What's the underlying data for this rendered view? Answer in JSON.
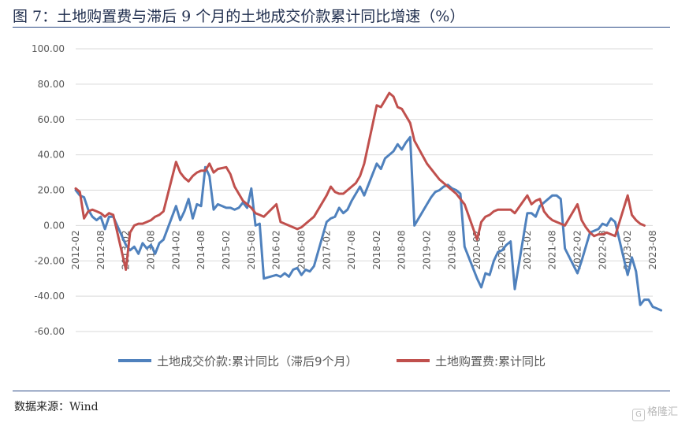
{
  "figure": {
    "title": "图 7：土地购置费与滞后 9 个月的土地成交价款累计同比增速（%）",
    "source": "数据来源：Wind",
    "watermark": "格隆汇"
  },
  "chart_data": {
    "type": "line",
    "title": "",
    "xlabel": "",
    "ylabel": "",
    "ylim": [
      -60,
      100
    ],
    "yticks": [
      "100.00",
      "80.00",
      "60.00",
      "40.00",
      "20.00",
      "0.00",
      "-20.00",
      "-40.00",
      "-60.00"
    ],
    "xticks": [
      "2012-02",
      "2012-08",
      "2013-02",
      "2013-08",
      "2014-02",
      "2014-08",
      "2015-02",
      "2015-08",
      "2016-02",
      "2016-08",
      "2017-02",
      "2017-08",
      "2018-02",
      "2018-08",
      "2019-02",
      "2019-08",
      "2020-02",
      "2020-08",
      "2021-02",
      "2021-08",
      "2022-02",
      "2022-08",
      "2023-02",
      "2023-08"
    ],
    "grid": "horizontal",
    "legend_position": "bottom",
    "colors": {
      "blue": "#4f81bd",
      "red": "#c0504d",
      "grid": "#d9d9d9",
      "axis": "#bfbfbf"
    },
    "series": [
      {
        "name": "土地成交价款:累计同比（滞后9个月）",
        "color": "#4f81bd",
        "points": [
          [
            "2012-02",
            20
          ],
          [
            "2012-03",
            17
          ],
          [
            "2012-04",
            16
          ],
          [
            "2012-05",
            9
          ],
          [
            "2012-06",
            5
          ],
          [
            "2012-07",
            3
          ],
          [
            "2012-08",
            5
          ],
          [
            "2012-09",
            -2
          ],
          [
            "2012-10",
            5
          ],
          [
            "2012-11",
            5
          ],
          [
            "2013-02",
            -11
          ],
          [
            "2013-03",
            -14
          ],
          [
            "2013-04",
            -12
          ],
          [
            "2013-05",
            -16
          ],
          [
            "2013-06",
            -10
          ],
          [
            "2013-07",
            -13
          ],
          [
            "2013-08",
            -11
          ],
          [
            "2013-09",
            -16
          ],
          [
            "2013-10",
            -10
          ],
          [
            "2013-11",
            -8
          ],
          [
            "2014-02",
            11
          ],
          [
            "2014-03",
            3
          ],
          [
            "2014-04",
            8
          ],
          [
            "2014-05",
            15
          ],
          [
            "2014-06",
            4
          ],
          [
            "2014-07",
            12
          ],
          [
            "2014-08",
            11
          ],
          [
            "2014-09",
            33
          ],
          [
            "2014-10",
            28
          ],
          [
            "2014-11",
            9
          ],
          [
            "2014-12",
            12
          ],
          [
            "2015-02",
            10
          ],
          [
            "2015-03",
            10
          ],
          [
            "2015-04",
            9
          ],
          [
            "2015-05",
            10
          ],
          [
            "2015-06",
            13
          ],
          [
            "2015-07",
            10
          ],
          [
            "2015-08",
            21
          ],
          [
            "2015-09",
            0
          ],
          [
            "2015-10",
            1
          ],
          [
            "2015-11",
            -30
          ],
          [
            "2016-02",
            -28
          ],
          [
            "2016-03",
            -29
          ],
          [
            "2016-04",
            -27
          ],
          [
            "2016-05",
            -29
          ],
          [
            "2016-06",
            -25
          ],
          [
            "2016-07",
            -24
          ],
          [
            "2016-08",
            -28
          ],
          [
            "2016-09",
            -25
          ],
          [
            "2016-10",
            -26
          ],
          [
            "2016-11",
            -23
          ],
          [
            "2017-02",
            2
          ],
          [
            "2017-03",
            4
          ],
          [
            "2017-04",
            5
          ],
          [
            "2017-05",
            10
          ],
          [
            "2017-06",
            7
          ],
          [
            "2017-07",
            9
          ],
          [
            "2017-08",
            14
          ],
          [
            "2017-09",
            18
          ],
          [
            "2017-10",
            22
          ],
          [
            "2017-11",
            17
          ],
          [
            "2018-02",
            35
          ],
          [
            "2018-03",
            32
          ],
          [
            "2018-04",
            38
          ],
          [
            "2018-05",
            40
          ],
          [
            "2018-06",
            42
          ],
          [
            "2018-07",
            46
          ],
          [
            "2018-08",
            43
          ],
          [
            "2018-09",
            47
          ],
          [
            "2018-10",
            50
          ],
          [
            "2018-11",
            0
          ],
          [
            "2019-02",
            12
          ],
          [
            "2019-03",
            16
          ],
          [
            "2019-04",
            19
          ],
          [
            "2019-05",
            20
          ],
          [
            "2019-06",
            22
          ],
          [
            "2019-07",
            23
          ],
          [
            "2019-08",
            21
          ],
          [
            "2019-09",
            20
          ],
          [
            "2019-10",
            18
          ],
          [
            "2019-11",
            -12
          ],
          [
            "2020-02",
            -30
          ],
          [
            "2020-03",
            -35
          ],
          [
            "2020-04",
            -27
          ],
          [
            "2020-05",
            -28
          ],
          [
            "2020-06",
            -20
          ],
          [
            "2020-07",
            -15
          ],
          [
            "2020-08",
            -14
          ],
          [
            "2020-09",
            -11
          ],
          [
            "2020-10",
            -9
          ],
          [
            "2020-11",
            -36
          ],
          [
            "2021-02",
            7
          ],
          [
            "2021-03",
            7
          ],
          [
            "2021-04",
            5
          ],
          [
            "2021-05",
            11
          ],
          [
            "2021-06",
            13
          ],
          [
            "2021-07",
            15
          ],
          [
            "2021-08",
            17
          ],
          [
            "2021-09",
            17
          ],
          [
            "2021-10",
            15
          ],
          [
            "2021-11",
            -13
          ],
          [
            "2022-02",
            -27
          ],
          [
            "2022-03",
            -20
          ],
          [
            "2022-04",
            -12
          ],
          [
            "2022-05",
            -4
          ],
          [
            "2022-06",
            -3
          ],
          [
            "2022-07",
            -2
          ],
          [
            "2022-08",
            1
          ],
          [
            "2022-09",
            0
          ],
          [
            "2022-10",
            4
          ],
          [
            "2022-11",
            2
          ],
          [
            "2023-02",
            -28
          ],
          [
            "2023-03",
            -18
          ],
          [
            "2023-04",
            -26
          ],
          [
            "2023-05",
            -45
          ],
          [
            "2023-06",
            -42
          ],
          [
            "2023-07",
            -42
          ],
          [
            "2023-08",
            -46
          ],
          [
            "2023-09",
            -47
          ],
          [
            "2023-10",
            -48
          ]
        ]
      },
      {
        "name": "土地购置费:累计同比",
        "color": "#c0504d",
        "points": [
          [
            "2012-02",
            21
          ],
          [
            "2012-03",
            19
          ],
          [
            "2012-04",
            4
          ],
          [
            "2012-05",
            8
          ],
          [
            "2012-06",
            9
          ],
          [
            "2012-07",
            8
          ],
          [
            "2012-08",
            7
          ],
          [
            "2012-09",
            5
          ],
          [
            "2012-10",
            7
          ],
          [
            "2012-11",
            6
          ],
          [
            "2013-02",
            -25
          ],
          [
            "2013-03",
            -4
          ],
          [
            "2013-04",
            0
          ],
          [
            "2013-05",
            1
          ],
          [
            "2013-06",
            1
          ],
          [
            "2013-07",
            2
          ],
          [
            "2013-08",
            3
          ],
          [
            "2013-09",
            5
          ],
          [
            "2013-10",
            6
          ],
          [
            "2013-11",
            8
          ],
          [
            "2014-02",
            36
          ],
          [
            "2014-03",
            30
          ],
          [
            "2014-04",
            27
          ],
          [
            "2014-05",
            25
          ],
          [
            "2014-06",
            28
          ],
          [
            "2014-07",
            30
          ],
          [
            "2014-08",
            31
          ],
          [
            "2014-09",
            31
          ],
          [
            "2014-10",
            35
          ],
          [
            "2014-11",
            30
          ],
          [
            "2014-12",
            32
          ],
          [
            "2015-02",
            33
          ],
          [
            "2015-03",
            29
          ],
          [
            "2015-04",
            22
          ],
          [
            "2015-05",
            18
          ],
          [
            "2015-06",
            14
          ],
          [
            "2015-07",
            12
          ],
          [
            "2015-08",
            10
          ],
          [
            "2015-09",
            7
          ],
          [
            "2015-10",
            6
          ],
          [
            "2015-11",
            5
          ],
          [
            "2016-02",
            12
          ],
          [
            "2016-03",
            2
          ],
          [
            "2016-04",
            1
          ],
          [
            "2016-05",
            0
          ],
          [
            "2016-06",
            -1
          ],
          [
            "2016-07",
            -2
          ],
          [
            "2016-08",
            -1
          ],
          [
            "2016-09",
            1
          ],
          [
            "2016-10",
            3
          ],
          [
            "2016-11",
            5
          ],
          [
            "2017-02",
            17
          ],
          [
            "2017-03",
            22
          ],
          [
            "2017-04",
            19
          ],
          [
            "2017-05",
            18
          ],
          [
            "2017-06",
            18
          ],
          [
            "2017-07",
            20
          ],
          [
            "2017-08",
            22
          ],
          [
            "2017-09",
            24
          ],
          [
            "2017-10",
            28
          ],
          [
            "2017-11",
            35
          ],
          [
            "2018-02",
            68
          ],
          [
            "2018-03",
            67
          ],
          [
            "2018-04",
            71
          ],
          [
            "2018-05",
            75
          ],
          [
            "2018-06",
            73
          ],
          [
            "2018-07",
            67
          ],
          [
            "2018-08",
            66
          ],
          [
            "2018-09",
            62
          ],
          [
            "2018-10",
            58
          ],
          [
            "2018-11",
            48
          ],
          [
            "2019-02",
            35
          ],
          [
            "2019-03",
            32
          ],
          [
            "2019-04",
            29
          ],
          [
            "2019-05",
            26
          ],
          [
            "2019-06",
            24
          ],
          [
            "2019-07",
            22
          ],
          [
            "2019-08",
            20
          ],
          [
            "2019-09",
            18
          ],
          [
            "2019-10",
            15
          ],
          [
            "2019-11",
            12
          ],
          [
            "2020-02",
            -8
          ],
          [
            "2020-03",
            2
          ],
          [
            "2020-04",
            5
          ],
          [
            "2020-05",
            6
          ],
          [
            "2020-06",
            8
          ],
          [
            "2020-07",
            9
          ],
          [
            "2020-08",
            9
          ],
          [
            "2020-09",
            9
          ],
          [
            "2020-10",
            9
          ],
          [
            "2020-11",
            7
          ],
          [
            "2021-02",
            17
          ],
          [
            "2021-03",
            12
          ],
          [
            "2021-04",
            14
          ],
          [
            "2021-05",
            15
          ],
          [
            "2021-06",
            8
          ],
          [
            "2021-07",
            5
          ],
          [
            "2021-08",
            3
          ],
          [
            "2021-09",
            2
          ],
          [
            "2021-10",
            1
          ],
          [
            "2021-11",
            0
          ],
          [
            "2022-02",
            12
          ],
          [
            "2022-03",
            3
          ],
          [
            "2022-04",
            -1
          ],
          [
            "2022-05",
            -4
          ],
          [
            "2022-06",
            -6
          ],
          [
            "2022-07",
            -5
          ],
          [
            "2022-08",
            -5
          ],
          [
            "2022-09",
            -4
          ],
          [
            "2022-10",
            -5
          ],
          [
            "2022-11",
            -6
          ],
          [
            "2023-02",
            17
          ],
          [
            "2023-03",
            6
          ],
          [
            "2023-04",
            3
          ],
          [
            "2023-05",
            1
          ],
          [
            "2023-06",
            0
          ]
        ]
      }
    ]
  }
}
